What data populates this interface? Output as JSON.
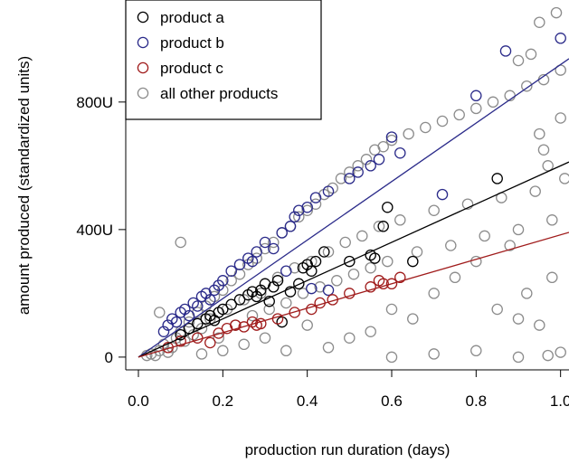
{
  "chart_data": {
    "type": "scatter",
    "title": "",
    "xlabel": "production run duration (days)",
    "ylabel": "amount produced (standardized units)",
    "xlim": [
      -0.03,
      1.02
    ],
    "ylim": [
      -40,
      1120
    ],
    "x_ticks": [
      {
        "value": 0.0,
        "label": "0.0"
      },
      {
        "value": 0.2,
        "label": "0.2"
      },
      {
        "value": 0.4,
        "label": "0.4"
      },
      {
        "value": 0.6,
        "label": "0.6"
      },
      {
        "value": 0.8,
        "label": "0.8"
      },
      {
        "value": 1.0,
        "label": "1.0"
      }
    ],
    "y_ticks": [
      {
        "value": 0,
        "label": "0"
      },
      {
        "value": 400,
        "label": "400U"
      },
      {
        "value": 800,
        "label": "800U"
      }
    ],
    "grid": false,
    "legend_position": "top-left",
    "series": [
      {
        "name": "all other products",
        "color": "#8c8c8c",
        "marker": "open-circle",
        "points": [
          [
            0.02,
            5
          ],
          [
            0.03,
            10
          ],
          [
            0.05,
            20
          ],
          [
            0.06,
            40
          ],
          [
            0.08,
            30
          ],
          [
            0.09,
            60
          ],
          [
            0.1,
            80
          ],
          [
            0.11,
            50
          ],
          [
            0.12,
            110
          ],
          [
            0.13,
            70
          ],
          [
            0.14,
            140
          ],
          [
            0.15,
            90
          ],
          [
            0.16,
            160
          ],
          [
            0.17,
            120
          ],
          [
            0.18,
            190
          ],
          [
            0.19,
            60
          ],
          [
            0.2,
            210
          ],
          [
            0.21,
            150
          ],
          [
            0.22,
            240
          ],
          [
            0.23,
            100
          ],
          [
            0.24,
            260
          ],
          [
            0.25,
            180
          ],
          [
            0.26,
            290
          ],
          [
            0.27,
            130
          ],
          [
            0.28,
            310
          ],
          [
            0.29,
            200
          ],
          [
            0.3,
            340
          ],
          [
            0.31,
            150
          ],
          [
            0.32,
            360
          ],
          [
            0.33,
            250
          ],
          [
            0.34,
            390
          ],
          [
            0.35,
            170
          ],
          [
            0.36,
            410
          ],
          [
            0.37,
            280
          ],
          [
            0.38,
            440
          ],
          [
            0.39,
            200
          ],
          [
            0.4,
            460
          ],
          [
            0.41,
            300
          ],
          [
            0.42,
            480
          ],
          [
            0.43,
            220
          ],
          [
            0.44,
            510
          ],
          [
            0.45,
            330
          ],
          [
            0.46,
            530
          ],
          [
            0.47,
            240
          ],
          [
            0.48,
            560
          ],
          [
            0.49,
            360
          ],
          [
            0.5,
            580
          ],
          [
            0.51,
            260
          ],
          [
            0.52,
            600
          ],
          [
            0.53,
            380
          ],
          [
            0.54,
            620
          ],
          [
            0.55,
            280
          ],
          [
            0.56,
            650
          ],
          [
            0.57,
            410
          ],
          [
            0.58,
            660
          ],
          [
            0.59,
            300
          ],
          [
            0.6,
            680
          ],
          [
            0.62,
            430
          ],
          [
            0.64,
            700
          ],
          [
            0.66,
            330
          ],
          [
            0.68,
            720
          ],
          [
            0.7,
            460
          ],
          [
            0.72,
            740
          ],
          [
            0.74,
            350
          ],
          [
            0.76,
            760
          ],
          [
            0.78,
            480
          ],
          [
            0.8,
            780
          ],
          [
            0.82,
            380
          ],
          [
            0.84,
            800
          ],
          [
            0.86,
            500
          ],
          [
            0.88,
            820
          ],
          [
            0.9,
            400
          ],
          [
            0.92,
            850
          ],
          [
            0.94,
            520
          ],
          [
            0.96,
            870
          ],
          [
            0.98,
            430
          ],
          [
            1.0,
            900
          ],
          [
            1.01,
            560
          ],
          [
            0.1,
            360
          ],
          [
            0.32,
            770
          ],
          [
            0.99,
            1080
          ],
          [
            0.95,
            1050
          ],
          [
            0.6,
            0
          ],
          [
            0.7,
            10
          ],
          [
            0.8,
            20
          ],
          [
            0.9,
            0
          ],
          [
            0.97,
            5
          ],
          [
            1.0,
            15
          ],
          [
            0.85,
            150
          ],
          [
            0.9,
            120
          ],
          [
            0.95,
            100
          ],
          [
            0.92,
            200
          ],
          [
            0.98,
            250
          ],
          [
            0.75,
            250
          ],
          [
            0.8,
            300
          ],
          [
            0.88,
            350
          ],
          [
            0.05,
            140
          ],
          [
            0.04,
            5
          ],
          [
            0.07,
            15
          ],
          [
            0.35,
            20
          ],
          [
            0.45,
            30
          ],
          [
            0.5,
            60
          ],
          [
            0.55,
            80
          ],
          [
            0.65,
            120
          ],
          [
            0.3,
            60
          ],
          [
            0.25,
            40
          ],
          [
            0.2,
            20
          ],
          [
            0.15,
            10
          ],
          [
            0.4,
            100
          ],
          [
            0.6,
            150
          ],
          [
            0.7,
            200
          ],
          [
            0.95,
            700
          ],
          [
            0.96,
            650
          ],
          [
            0.97,
            600
          ],
          [
            1.0,
            750
          ],
          [
            0.93,
            950
          ],
          [
            0.9,
            930
          ]
        ]
      },
      {
        "name": "product a",
        "color": "#000000",
        "marker": "open-circle",
        "points": [
          [
            0.1,
            70
          ],
          [
            0.12,
            90
          ],
          [
            0.14,
            105
          ],
          [
            0.16,
            120
          ],
          [
            0.17,
            130
          ],
          [
            0.18,
            115
          ],
          [
            0.19,
            140
          ],
          [
            0.2,
            150
          ],
          [
            0.22,
            165
          ],
          [
            0.24,
            180
          ],
          [
            0.26,
            195
          ],
          [
            0.27,
            205
          ],
          [
            0.28,
            190
          ],
          [
            0.29,
            210
          ],
          [
            0.3,
            230
          ],
          [
            0.31,
            175
          ],
          [
            0.32,
            220
          ],
          [
            0.33,
            240
          ],
          [
            0.34,
            110
          ],
          [
            0.36,
            205
          ],
          [
            0.38,
            230
          ],
          [
            0.39,
            280
          ],
          [
            0.4,
            290
          ],
          [
            0.41,
            270
          ],
          [
            0.42,
            300
          ],
          [
            0.44,
            330
          ],
          [
            0.5,
            300
          ],
          [
            0.55,
            320
          ],
          [
            0.56,
            310
          ],
          [
            0.58,
            410
          ],
          [
            0.59,
            470
          ],
          [
            0.65,
            300
          ],
          [
            0.85,
            560
          ]
        ]
      },
      {
        "name": "product b",
        "color": "#2b2b8a",
        "marker": "open-circle",
        "points": [
          [
            0.06,
            80
          ],
          [
            0.07,
            100
          ],
          [
            0.08,
            120
          ],
          [
            0.09,
            110
          ],
          [
            0.1,
            140
          ],
          [
            0.11,
            150
          ],
          [
            0.12,
            130
          ],
          [
            0.13,
            170
          ],
          [
            0.14,
            160
          ],
          [
            0.15,
            190
          ],
          [
            0.16,
            200
          ],
          [
            0.17,
            180
          ],
          [
            0.18,
            210
          ],
          [
            0.19,
            225
          ],
          [
            0.2,
            240
          ],
          [
            0.22,
            270
          ],
          [
            0.24,
            290
          ],
          [
            0.26,
            310
          ],
          [
            0.27,
            300
          ],
          [
            0.28,
            330
          ],
          [
            0.3,
            360
          ],
          [
            0.32,
            340
          ],
          [
            0.34,
            390
          ],
          [
            0.36,
            410
          ],
          [
            0.37,
            440
          ],
          [
            0.38,
            460
          ],
          [
            0.4,
            470
          ],
          [
            0.42,
            500
          ],
          [
            0.45,
            520
          ],
          [
            0.5,
            560
          ],
          [
            0.52,
            580
          ],
          [
            0.55,
            600
          ],
          [
            0.57,
            620
          ],
          [
            0.6,
            690
          ],
          [
            0.62,
            640
          ],
          [
            0.72,
            510
          ],
          [
            0.8,
            820
          ],
          [
            0.87,
            960
          ],
          [
            1.0,
            1000
          ],
          [
            0.45,
            210
          ],
          [
            0.41,
            215
          ],
          [
            0.35,
            270
          ]
        ]
      },
      {
        "name": "product c",
        "color": "#a01c1c",
        "marker": "open-circle",
        "points": [
          [
            0.07,
            30
          ],
          [
            0.1,
            50
          ],
          [
            0.14,
            60
          ],
          [
            0.17,
            45
          ],
          [
            0.19,
            75
          ],
          [
            0.21,
            90
          ],
          [
            0.23,
            100
          ],
          [
            0.25,
            95
          ],
          [
            0.27,
            110
          ],
          [
            0.28,
            100
          ],
          [
            0.29,
            105
          ],
          [
            0.33,
            120
          ],
          [
            0.37,
            140
          ],
          [
            0.41,
            150
          ],
          [
            0.43,
            170
          ],
          [
            0.46,
            180
          ],
          [
            0.5,
            200
          ],
          [
            0.55,
            220
          ],
          [
            0.57,
            240
          ],
          [
            0.58,
            230
          ],
          [
            0.6,
            230
          ],
          [
            0.62,
            250
          ]
        ]
      }
    ],
    "trend_lines": [
      {
        "color": "#2b2b8a",
        "from": [
          0.0,
          0
        ],
        "to": [
          1.02,
          936
        ]
      },
      {
        "color": "#000000",
        "from": [
          0.0,
          0
        ],
        "to": [
          1.02,
          612
        ]
      },
      {
        "color": "#a01c1c",
        "from": [
          0.0,
          0
        ],
        "to": [
          1.02,
          391
        ]
      }
    ],
    "legend": [
      {
        "label": "product a",
        "color": "#000000"
      },
      {
        "label": "product b",
        "color": "#2b2b8a"
      },
      {
        "label": "product c",
        "color": "#a01c1c"
      },
      {
        "label": "all other products",
        "color": "#8c8c8c"
      }
    ]
  }
}
